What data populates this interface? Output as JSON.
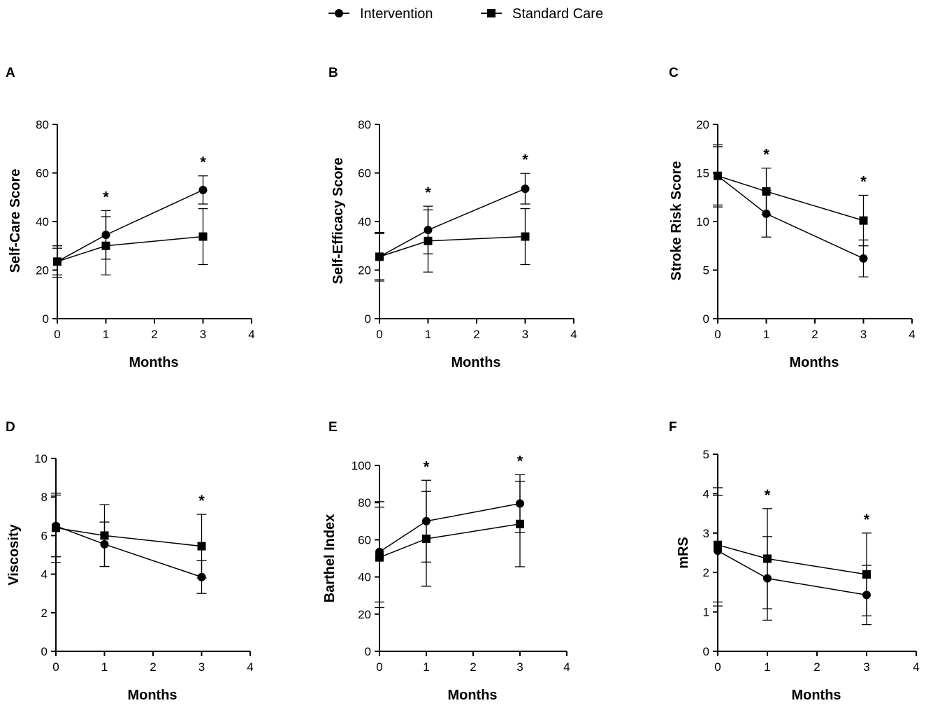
{
  "legend": {
    "items": [
      {
        "name": "Intervention",
        "marker": "circle"
      },
      {
        "name": "Standard Care",
        "marker": "square"
      }
    ]
  },
  "colors": {
    "line": "#000000",
    "background": "#ffffff"
  },
  "chart_data": [
    {
      "panel": "A",
      "type": "line",
      "xlabel": "Months",
      "ylabel": "Self-Care Score",
      "xlim": [
        0,
        4
      ],
      "xticks": [
        0,
        1,
        2,
        3,
        4
      ],
      "ylim": [
        0,
        80
      ],
      "yticks": [
        0,
        20,
        40,
        60,
        80
      ],
      "x": [
        0,
        1,
        3
      ],
      "series": [
        {
          "name": "Intervention",
          "marker": "circle",
          "values": [
            23.5,
            34.5,
            53
          ],
          "err": [
            6.5,
            10,
            5.8
          ]
        },
        {
          "name": "Standard Care",
          "marker": "square",
          "values": [
            23.5,
            30,
            33.8
          ],
          "err": [
            5.5,
            12,
            11.5
          ]
        }
      ],
      "significance": [
        {
          "x": 1,
          "label": "*"
        },
        {
          "x": 3,
          "label": "*"
        }
      ]
    },
    {
      "panel": "B",
      "type": "line",
      "xlabel": "Months",
      "ylabel": "Self-Efficacy  Score",
      "xlim": [
        0,
        4
      ],
      "xticks": [
        0,
        1,
        2,
        3,
        4
      ],
      "ylim": [
        0,
        80
      ],
      "yticks": [
        0,
        20,
        40,
        60,
        80
      ],
      "x": [
        0,
        1,
        3
      ],
      "series": [
        {
          "name": "Intervention",
          "marker": "circle",
          "values": [
            25.5,
            36.5,
            53.5
          ],
          "err": [
            10,
            9.8,
            6.3
          ]
        },
        {
          "name": "Standard Care",
          "marker": "square",
          "values": [
            25.5,
            32,
            33.8
          ],
          "err": [
            9.5,
            12.8,
            11.5
          ]
        }
      ],
      "significance": [
        {
          "x": 1,
          "label": "*"
        },
        {
          "x": 3,
          "label": "*"
        }
      ]
    },
    {
      "panel": "C",
      "type": "line",
      "xlabel": "Months",
      "ylabel": "Stroke Risk Score",
      "xlim": [
        0,
        4
      ],
      "xticks": [
        0,
        1,
        2,
        3,
        4
      ],
      "ylim": [
        0,
        20
      ],
      "yticks": [
        0,
        5,
        10,
        15,
        20
      ],
      "x": [
        0,
        1,
        3
      ],
      "series": [
        {
          "name": "Intervention",
          "marker": "circle",
          "values": [
            14.7,
            10.8,
            6.2
          ],
          "err": [
            3.0,
            2.4,
            1.9
          ]
        },
        {
          "name": "Standard Care",
          "marker": "square",
          "values": [
            14.7,
            13.1,
            10.1
          ],
          "err": [
            3.2,
            2.4,
            2.6
          ]
        }
      ],
      "significance": [
        {
          "x": 1,
          "label": "*"
        },
        {
          "x": 3,
          "label": "*"
        }
      ]
    },
    {
      "panel": "D",
      "type": "line",
      "xlabel": "Months",
      "ylabel": "Viscosity",
      "xlim": [
        0,
        4
      ],
      "xticks": [
        0,
        1,
        2,
        3,
        4
      ],
      "ylim": [
        0,
        10
      ],
      "yticks": [
        0,
        2,
        4,
        6,
        8,
        10
      ],
      "x": [
        0,
        1,
        3
      ],
      "series": [
        {
          "name": "Intervention",
          "marker": "circle",
          "values": [
            6.5,
            5.55,
            3.85
          ],
          "err": [
            1.6,
            1.15,
            0.85
          ]
        },
        {
          "name": "Standard Care",
          "marker": "square",
          "values": [
            6.4,
            6.0,
            5.45
          ],
          "err": [
            1.8,
            1.6,
            1.65
          ]
        }
      ],
      "significance": [
        {
          "x": 3,
          "label": "*"
        }
      ]
    },
    {
      "panel": "E",
      "type": "line",
      "xlabel": "Months",
      "ylabel": "Barthel Index",
      "xlim": [
        0,
        4
      ],
      "xticks": [
        0,
        1,
        2,
        3,
        4
      ],
      "ylim": [
        0,
        100
      ],
      "yticks": [
        0,
        20,
        40,
        60,
        80,
        100
      ],
      "x": [
        0,
        1,
        3
      ],
      "series": [
        {
          "name": "Intervention",
          "marker": "circle",
          "values": [
            53.5,
            70,
            79.5
          ],
          "err": [
            27,
            22,
            15.5
          ]
        },
        {
          "name": "Standard Care",
          "marker": "square",
          "values": [
            50.5,
            60.5,
            68.5
          ],
          "err": [
            27,
            25.5,
            23
          ]
        }
      ],
      "significance": [
        {
          "x": 1,
          "label": "*"
        },
        {
          "x": 3,
          "label": "*"
        }
      ]
    },
    {
      "panel": "F",
      "type": "line",
      "xlabel": "Months",
      "ylabel": "mRS",
      "xlim": [
        0,
        4
      ],
      "xticks": [
        0,
        1,
        2,
        3,
        4
      ],
      "ylim": [
        0,
        5
      ],
      "yticks": [
        0,
        1,
        2,
        3,
        4,
        5
      ],
      "x": [
        0,
        1,
        3
      ],
      "series": [
        {
          "name": "Intervention",
          "marker": "circle",
          "values": [
            2.55,
            1.85,
            1.43
          ],
          "err": [
            1.4,
            1.06,
            0.75
          ]
        },
        {
          "name": "Standard Care",
          "marker": "square",
          "values": [
            2.7,
            2.35,
            1.95
          ],
          "err": [
            1.45,
            1.27,
            1.05
          ]
        }
      ],
      "significance": [
        {
          "x": 1,
          "label": "*"
        },
        {
          "x": 3,
          "label": "*"
        }
      ]
    }
  ]
}
